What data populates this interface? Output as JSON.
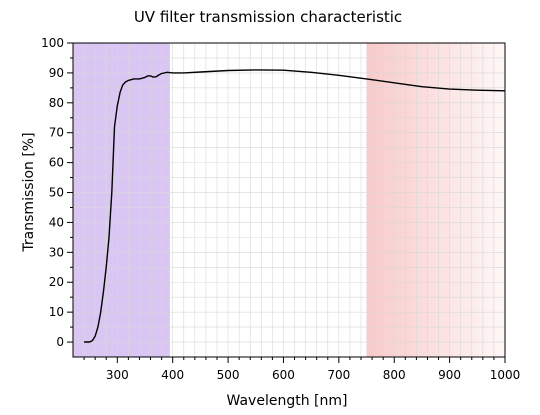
{
  "chart_data": {
    "type": "line",
    "title": "UV filter transmission characteristic",
    "xlabel": "Wavelength [nm]",
    "ylabel": "Transmission [%]",
    "xlim": [
      220,
      1000
    ],
    "ylim": [
      -5,
      100
    ],
    "xticks": [
      300,
      400,
      500,
      600,
      700,
      800,
      900,
      1000
    ],
    "yticks": [
      0,
      10,
      20,
      30,
      40,
      50,
      60,
      70,
      80,
      90,
      100
    ],
    "grid": true,
    "legend": "none",
    "shaded_regions": [
      {
        "band": "uv",
        "x_range": [
          220,
          395
        ],
        "color": "#d9c6f2"
      },
      {
        "band": "ir",
        "x_range": [
          750,
          1000
        ],
        "color": "#f9caca"
      }
    ],
    "series": [
      {
        "color": "#000000",
        "x": [
          240,
          250,
          255,
          260,
          265,
          270,
          275,
          280,
          285,
          290,
          295,
          300,
          305,
          310,
          315,
          320,
          330,
          340,
          350,
          355,
          360,
          365,
          370,
          375,
          380,
          390,
          400,
          420,
          450,
          500,
          550,
          600,
          650,
          700,
          750,
          800,
          850,
          900,
          950,
          1000
        ],
        "y": [
          0,
          0,
          0.5,
          2,
          5,
          10,
          17,
          25,
          35,
          50,
          72,
          79,
          83.5,
          86,
          87,
          87.5,
          88,
          88,
          88.5,
          89,
          89,
          88.6,
          88.7,
          89.3,
          89.8,
          90.2,
          90.0,
          90.0,
          90.3,
          90.8,
          91.0,
          90.9,
          90.2,
          89.2,
          88.0,
          86.7,
          85.4,
          84.6,
          84.2,
          84.0
        ]
      }
    ]
  }
}
